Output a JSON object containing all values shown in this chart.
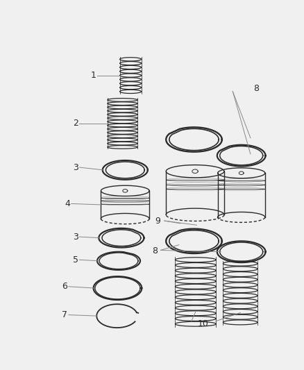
{
  "bg_color": "#f0f0f0",
  "line_color": "#2a2a2a",
  "label_color": "#2a2a2a",
  "figsize": [
    4.38,
    5.33
  ],
  "dpi": 100
}
